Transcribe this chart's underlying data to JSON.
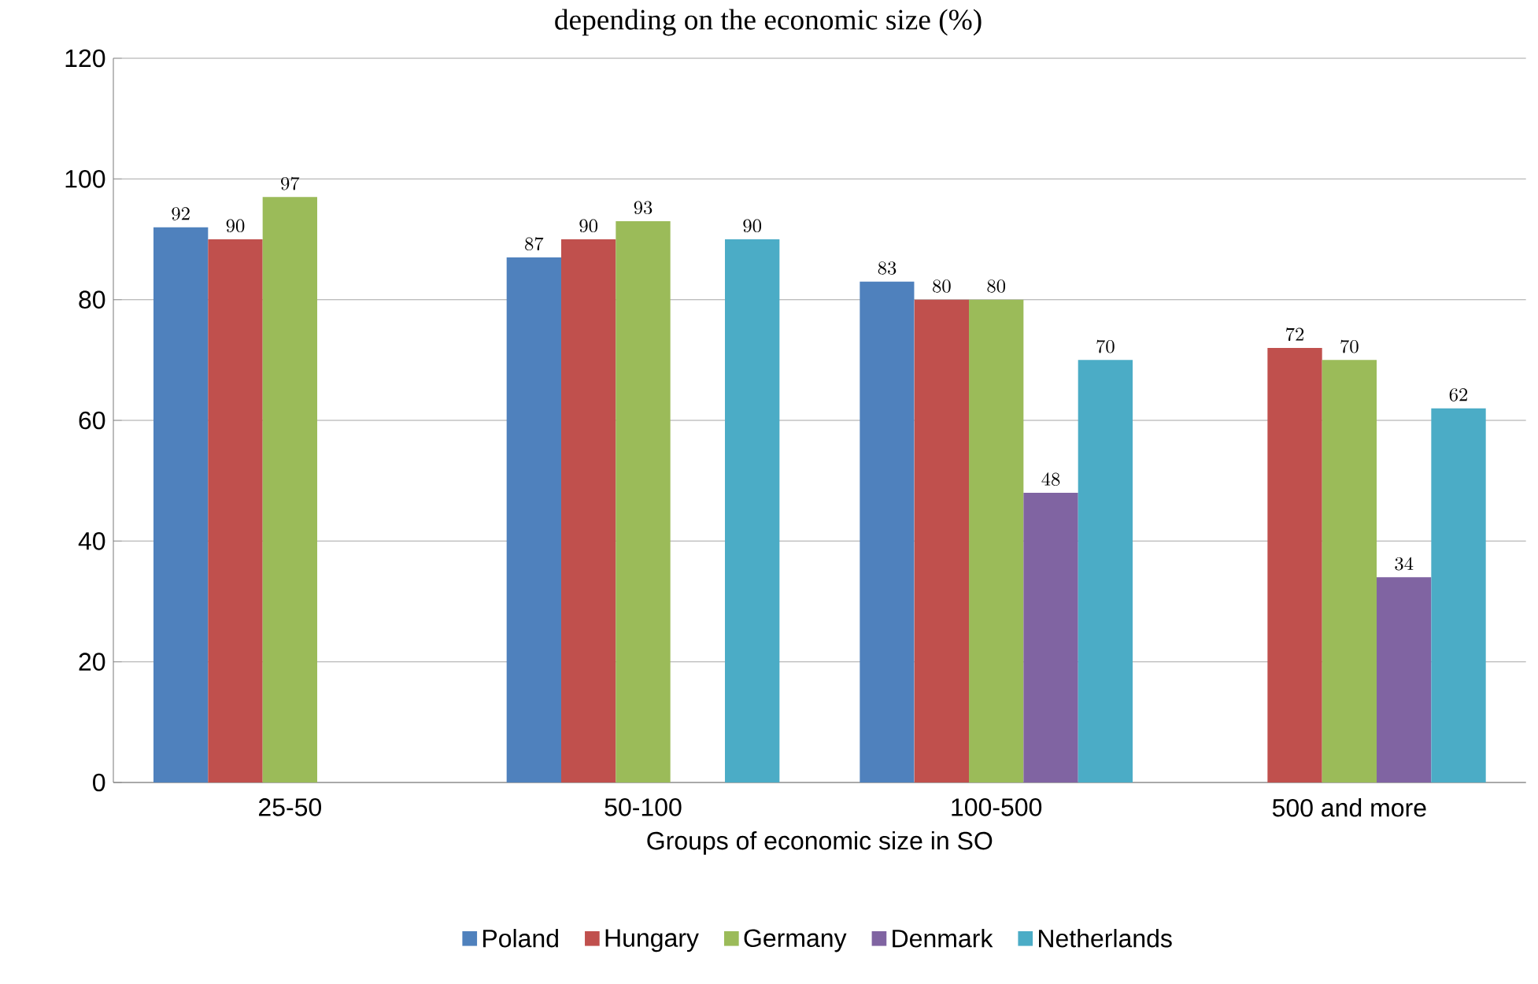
{
  "chart_data": {
    "type": "bar",
    "title": "depending on the economic size (%)",
    "xlabel": "Groups of economic size in SO",
    "categories": [
      "25-50",
      "50-100",
      "100-500",
      "500 and more"
    ],
    "series": [
      {
        "name": "Poland",
        "color": "#4f81bd",
        "values": [
          92,
          87,
          83,
          null
        ]
      },
      {
        "name": "Hungary",
        "color": "#c0504d",
        "values": [
          90,
          90,
          80,
          72
        ]
      },
      {
        "name": "Germany",
        "color": "#9bbb59",
        "values": [
          97,
          93,
          80,
          70
        ]
      },
      {
        "name": "Denmark",
        "color": "#8064a2",
        "values": [
          null,
          null,
          48,
          34
        ]
      },
      {
        "name": "Netherlands",
        "color": "#4bacc6",
        "values": [
          null,
          90,
          70,
          62
        ]
      }
    ],
    "ylim": [
      0,
      120
    ],
    "yticks": [
      0,
      20,
      40,
      60,
      80,
      100,
      120
    ],
    "grid": "y",
    "legend": "bottom",
    "data_labels": true
  }
}
